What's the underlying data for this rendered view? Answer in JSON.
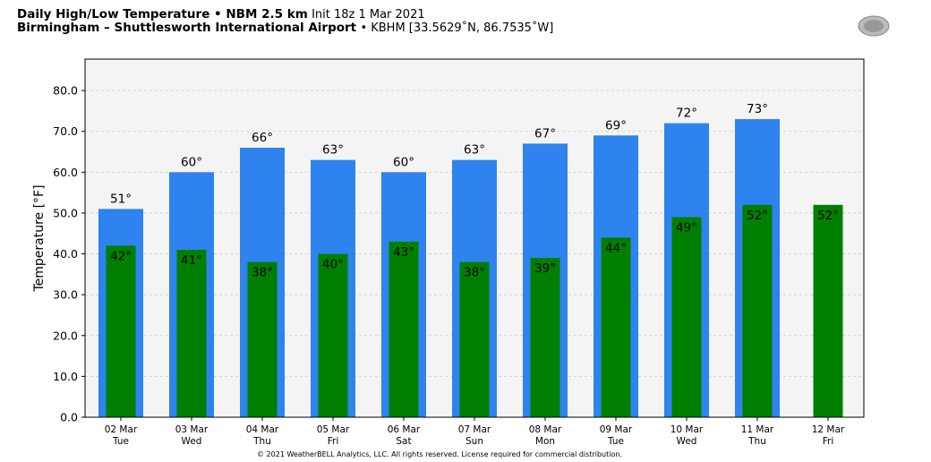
{
  "header": {
    "title_bold": "Daily High/Low Temperature • NBM 2.5 km",
    "title_init": "Init 18z 1 Mar 2021",
    "location_bold": "Birmingham – Shuttlesworth International Airport",
    "location_info": "• KBHM [33.5629˚N, 86.7535˚W]",
    "logo_text": "WeatherBELL"
  },
  "footer": {
    "copyright": "© 2021 WeatherBELL Analytics, LLC. All rights reserved. License required for commercial distribution."
  },
  "colors": {
    "high": "#2e83ee",
    "low": "#007f00",
    "plot_bg": "#f4f4f4"
  },
  "chart_data": {
    "type": "bar",
    "ylabel": "Temperature [°F]",
    "ylim": [
      0,
      87.7
    ],
    "yticks": [
      "0.0",
      "10.0",
      "20.0",
      "30.0",
      "40.0",
      "50.0",
      "60.0",
      "70.0",
      "80.0"
    ],
    "grid": true,
    "categories": [
      [
        "02 Mar",
        "Tue"
      ],
      [
        "03 Mar",
        "Wed"
      ],
      [
        "04 Mar",
        "Thu"
      ],
      [
        "05 Mar",
        "Fri"
      ],
      [
        "06 Mar",
        "Sat"
      ],
      [
        "07 Mar",
        "Sun"
      ],
      [
        "08 Mar",
        "Mon"
      ],
      [
        "09 Mar",
        "Tue"
      ],
      [
        "10 Mar",
        "Wed"
      ],
      [
        "11 Mar",
        "Thu"
      ],
      [
        "12 Mar",
        "Fri"
      ]
    ],
    "series": [
      {
        "name": "High",
        "values": [
          51,
          60,
          66,
          63,
          60,
          63,
          67,
          69,
          72,
          73,
          null
        ],
        "labels": [
          "51°",
          "60°",
          "66°",
          "63°",
          "60°",
          "63°",
          "67°",
          "69°",
          "72°",
          "73°",
          ""
        ]
      },
      {
        "name": "Low",
        "values": [
          42,
          41,
          38,
          40,
          43,
          38,
          39,
          44,
          49,
          52,
          52
        ],
        "labels": [
          "42°",
          "41°",
          "38°",
          "40°",
          "43°",
          "38°",
          "39°",
          "44°",
          "49°",
          "52°",
          "52°"
        ]
      }
    ]
  }
}
